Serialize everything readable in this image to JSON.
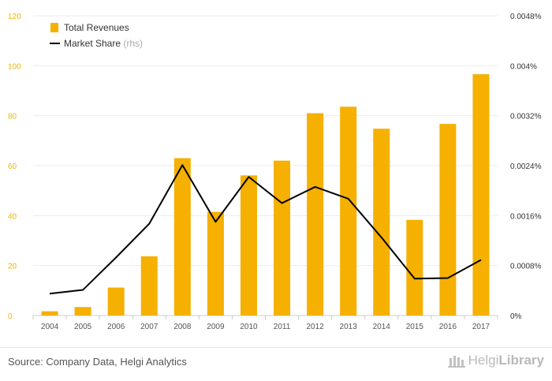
{
  "chart_data": {
    "type": "bar",
    "categories": [
      "2004",
      "2005",
      "2006",
      "2007",
      "2008",
      "2009",
      "2010",
      "2011",
      "2012",
      "2013",
      "2014",
      "2015",
      "2016",
      "2017"
    ],
    "series": [
      {
        "name": "Total Revenues",
        "type": "bar",
        "axis": "left",
        "color": "#f5b000",
        "values": [
          1.7,
          3.4,
          11.2,
          23.7,
          63.0,
          41.5,
          56.1,
          62.0,
          81.0,
          83.6,
          74.8,
          38.3,
          76.7,
          96.6
        ]
      },
      {
        "name": "Market Share",
        "name_suffix": "(rhs)",
        "type": "line",
        "axis": "right",
        "color": "#000000",
        "values": [
          0.00035,
          0.00041,
          0.00093,
          0.00147,
          0.00241,
          0.0015,
          0.00222,
          0.0018,
          0.00206,
          0.00187,
          0.00125,
          0.00059,
          0.0006,
          0.00089
        ]
      }
    ],
    "ylim_left": [
      0,
      120
    ],
    "yticks_left": [
      "0",
      "20",
      "40",
      "60",
      "80",
      "100",
      "120"
    ],
    "ylim_right": [
      0,
      0.0048
    ],
    "yticks_right": [
      "0%",
      "0.0008%",
      "0.0016%",
      "0.0024%",
      "0.0032%",
      "0.004%",
      "0.0048%"
    ],
    "grid": true,
    "legend": "top-left"
  },
  "footer": {
    "source": "Source: Company Data, Helgi Analytics",
    "logo_light": "Helgi",
    "logo_bold": "Library"
  }
}
